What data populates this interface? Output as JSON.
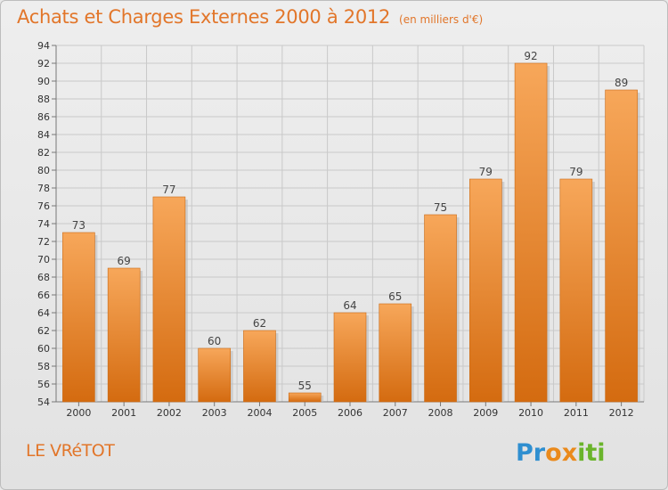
{
  "header": {
    "title": "Achats et Charges Externes 2000 à 2012",
    "unit": "(en milliers d'€)"
  },
  "footer": {
    "town": "LE VRéTOT",
    "logo_text": "Proxiti"
  },
  "colors": {
    "accent": "#e2762a",
    "bar_top": "#f7a75a",
    "bar_bottom": "#d46b10"
  },
  "chart_data": {
    "type": "bar",
    "title": "Achats et Charges Externes 2000 à 2012",
    "xlabel": "",
    "ylabel": "",
    "categories": [
      "2000",
      "2001",
      "2002",
      "2003",
      "2004",
      "2005",
      "2006",
      "2007",
      "2008",
      "2009",
      "2010",
      "2011",
      "2012"
    ],
    "values": [
      73,
      69,
      77,
      60,
      62,
      55,
      64,
      65,
      75,
      79,
      92,
      79,
      89
    ],
    "ylim": [
      54,
      94
    ],
    "yticks": [
      54,
      56,
      58,
      60,
      62,
      64,
      66,
      68,
      70,
      72,
      74,
      76,
      78,
      80,
      82,
      84,
      86,
      88,
      90,
      92,
      94
    ],
    "grid": true,
    "data_labels": true
  }
}
